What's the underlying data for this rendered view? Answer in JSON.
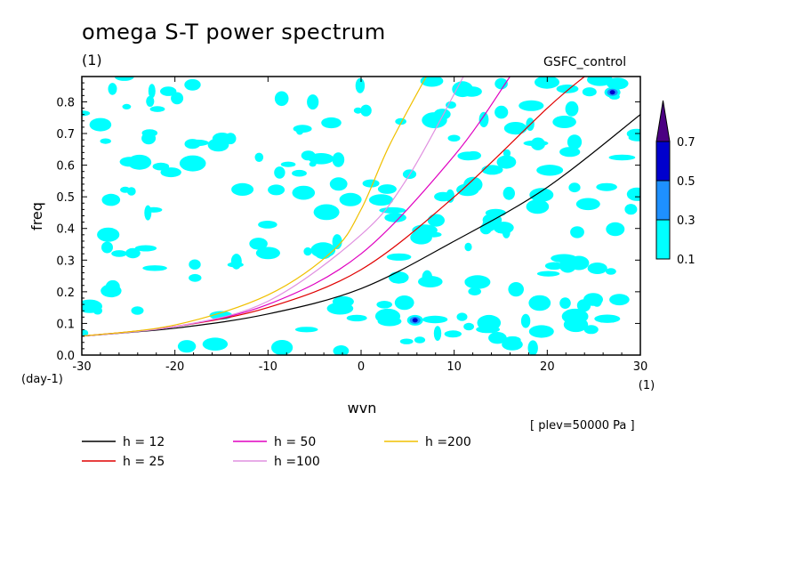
{
  "header": {
    "title": "omega S-T power spectrum",
    "subtitle": "(1)",
    "model_label": "GSFC_control"
  },
  "chart_data": {
    "type": "contour",
    "xlabel": "wvn",
    "ylabel": "freq",
    "x_unit_label": "(1)",
    "y_unit_label": "(day-1)",
    "xlim": [
      -30,
      30
    ],
    "ylim": [
      0,
      0.88
    ],
    "x_ticks": [
      "-30",
      "-20",
      "-10",
      "0",
      "10",
      "20",
      "30"
    ],
    "y_ticks": [
      "0.0",
      "0.1",
      "0.2",
      "0.3",
      "0.4",
      "0.5",
      "0.6",
      "0.7",
      "0.8"
    ],
    "level_label": "[ plev=50000 Pa ]",
    "colorbar": {
      "levels": [
        "0.1",
        "0.3",
        "0.5",
        "0.7"
      ],
      "colors": [
        "#00ffff",
        "#1e90ff",
        "#0000cd",
        "#4b0082"
      ]
    },
    "series": [
      {
        "name": "h = 12",
        "color": "#000000",
        "x": [
          -30,
          -20,
          -10,
          0,
          10,
          20,
          30
        ],
        "y": [
          0.06,
          0.085,
          0.13,
          0.21,
          0.36,
          0.53,
          0.76
        ]
      },
      {
        "name": "h = 25",
        "color": "#e00000",
        "x": [
          -30,
          -20,
          -10,
          0,
          10,
          20,
          24
        ],
        "y": [
          0.06,
          0.09,
          0.15,
          0.27,
          0.5,
          0.78,
          0.88
        ]
      },
      {
        "name": "h = 50",
        "color": "#e000c0",
        "x": [
          -30,
          -20,
          -10,
          0,
          10,
          16
        ],
        "y": [
          0.06,
          0.09,
          0.16,
          0.32,
          0.63,
          0.88
        ]
      },
      {
        "name": "h =100",
        "color": "#e090e0",
        "x": [
          -30,
          -20,
          -10,
          0,
          5,
          11
        ],
        "y": [
          0.06,
          0.09,
          0.17,
          0.38,
          0.56,
          0.88
        ]
      },
      {
        "name": "h =200",
        "color": "#f0c000",
        "x": [
          -30,
          -20,
          -10,
          -3,
          0,
          3,
          7
        ],
        "y": [
          0.06,
          0.095,
          0.19,
          0.33,
          0.46,
          0.66,
          0.88
        ]
      }
    ],
    "peak_points": [
      {
        "x": 5.8,
        "y": 0.11
      },
      {
        "x": 27,
        "y": 0.83
      }
    ]
  }
}
